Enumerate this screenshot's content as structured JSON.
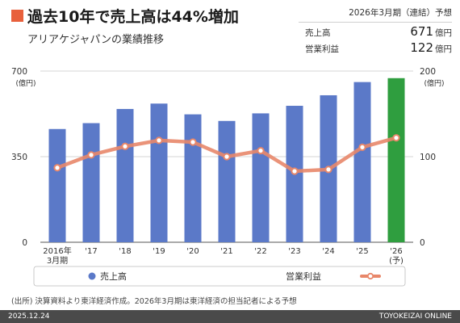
{
  "header": {
    "title": "過去10年で売上高は44%増加",
    "subtitle": "アリアケジャパンの業績推移"
  },
  "forecast": {
    "heading": "2026年3月期（連結）予想",
    "rows": [
      {
        "label": "売上高",
        "value": "671",
        "unit": "億円"
      },
      {
        "label": "営業利益",
        "value": "122",
        "unit": "億円"
      }
    ]
  },
  "chart_data": {
    "type": "bar",
    "categories": [
      "2016年\n3月期",
      "'17",
      "'18",
      "'19",
      "'20",
      "'21",
      "'22",
      "'23",
      "'24",
      "'25",
      "'26\n(予)"
    ],
    "series": [
      {
        "name": "売上高",
        "type": "bar",
        "axis": "left",
        "values": [
          463,
          487,
          545,
          567,
          523,
          496,
          527,
          558,
          601,
          655,
          671
        ],
        "color": "#5b79c8",
        "forecast_color": "#2f9e3f"
      },
      {
        "name": "営業利益",
        "type": "line",
        "axis": "right",
        "values": [
          87,
          102,
          112,
          119,
          117,
          100,
          107,
          83,
          85,
          111,
          122
        ],
        "color": "#e8876a"
      }
    ],
    "y_left": {
      "unit": "(億円)",
      "ylim": [
        0,
        700
      ],
      "ticks": [
        0,
        350,
        700
      ]
    },
    "y_right": {
      "unit": "(億円)",
      "ylim": [
        0,
        200
      ],
      "ticks": [
        0,
        100,
        200
      ]
    },
    "grid": true,
    "legend_position": "bottom"
  },
  "source": "(出所) 決算資料より東洋経済作成。2026年3月期は東洋経済の担当記者による予想",
  "footer": {
    "date": "2025.12.24",
    "brand": "TOYOKEIZAI ONLINE"
  }
}
